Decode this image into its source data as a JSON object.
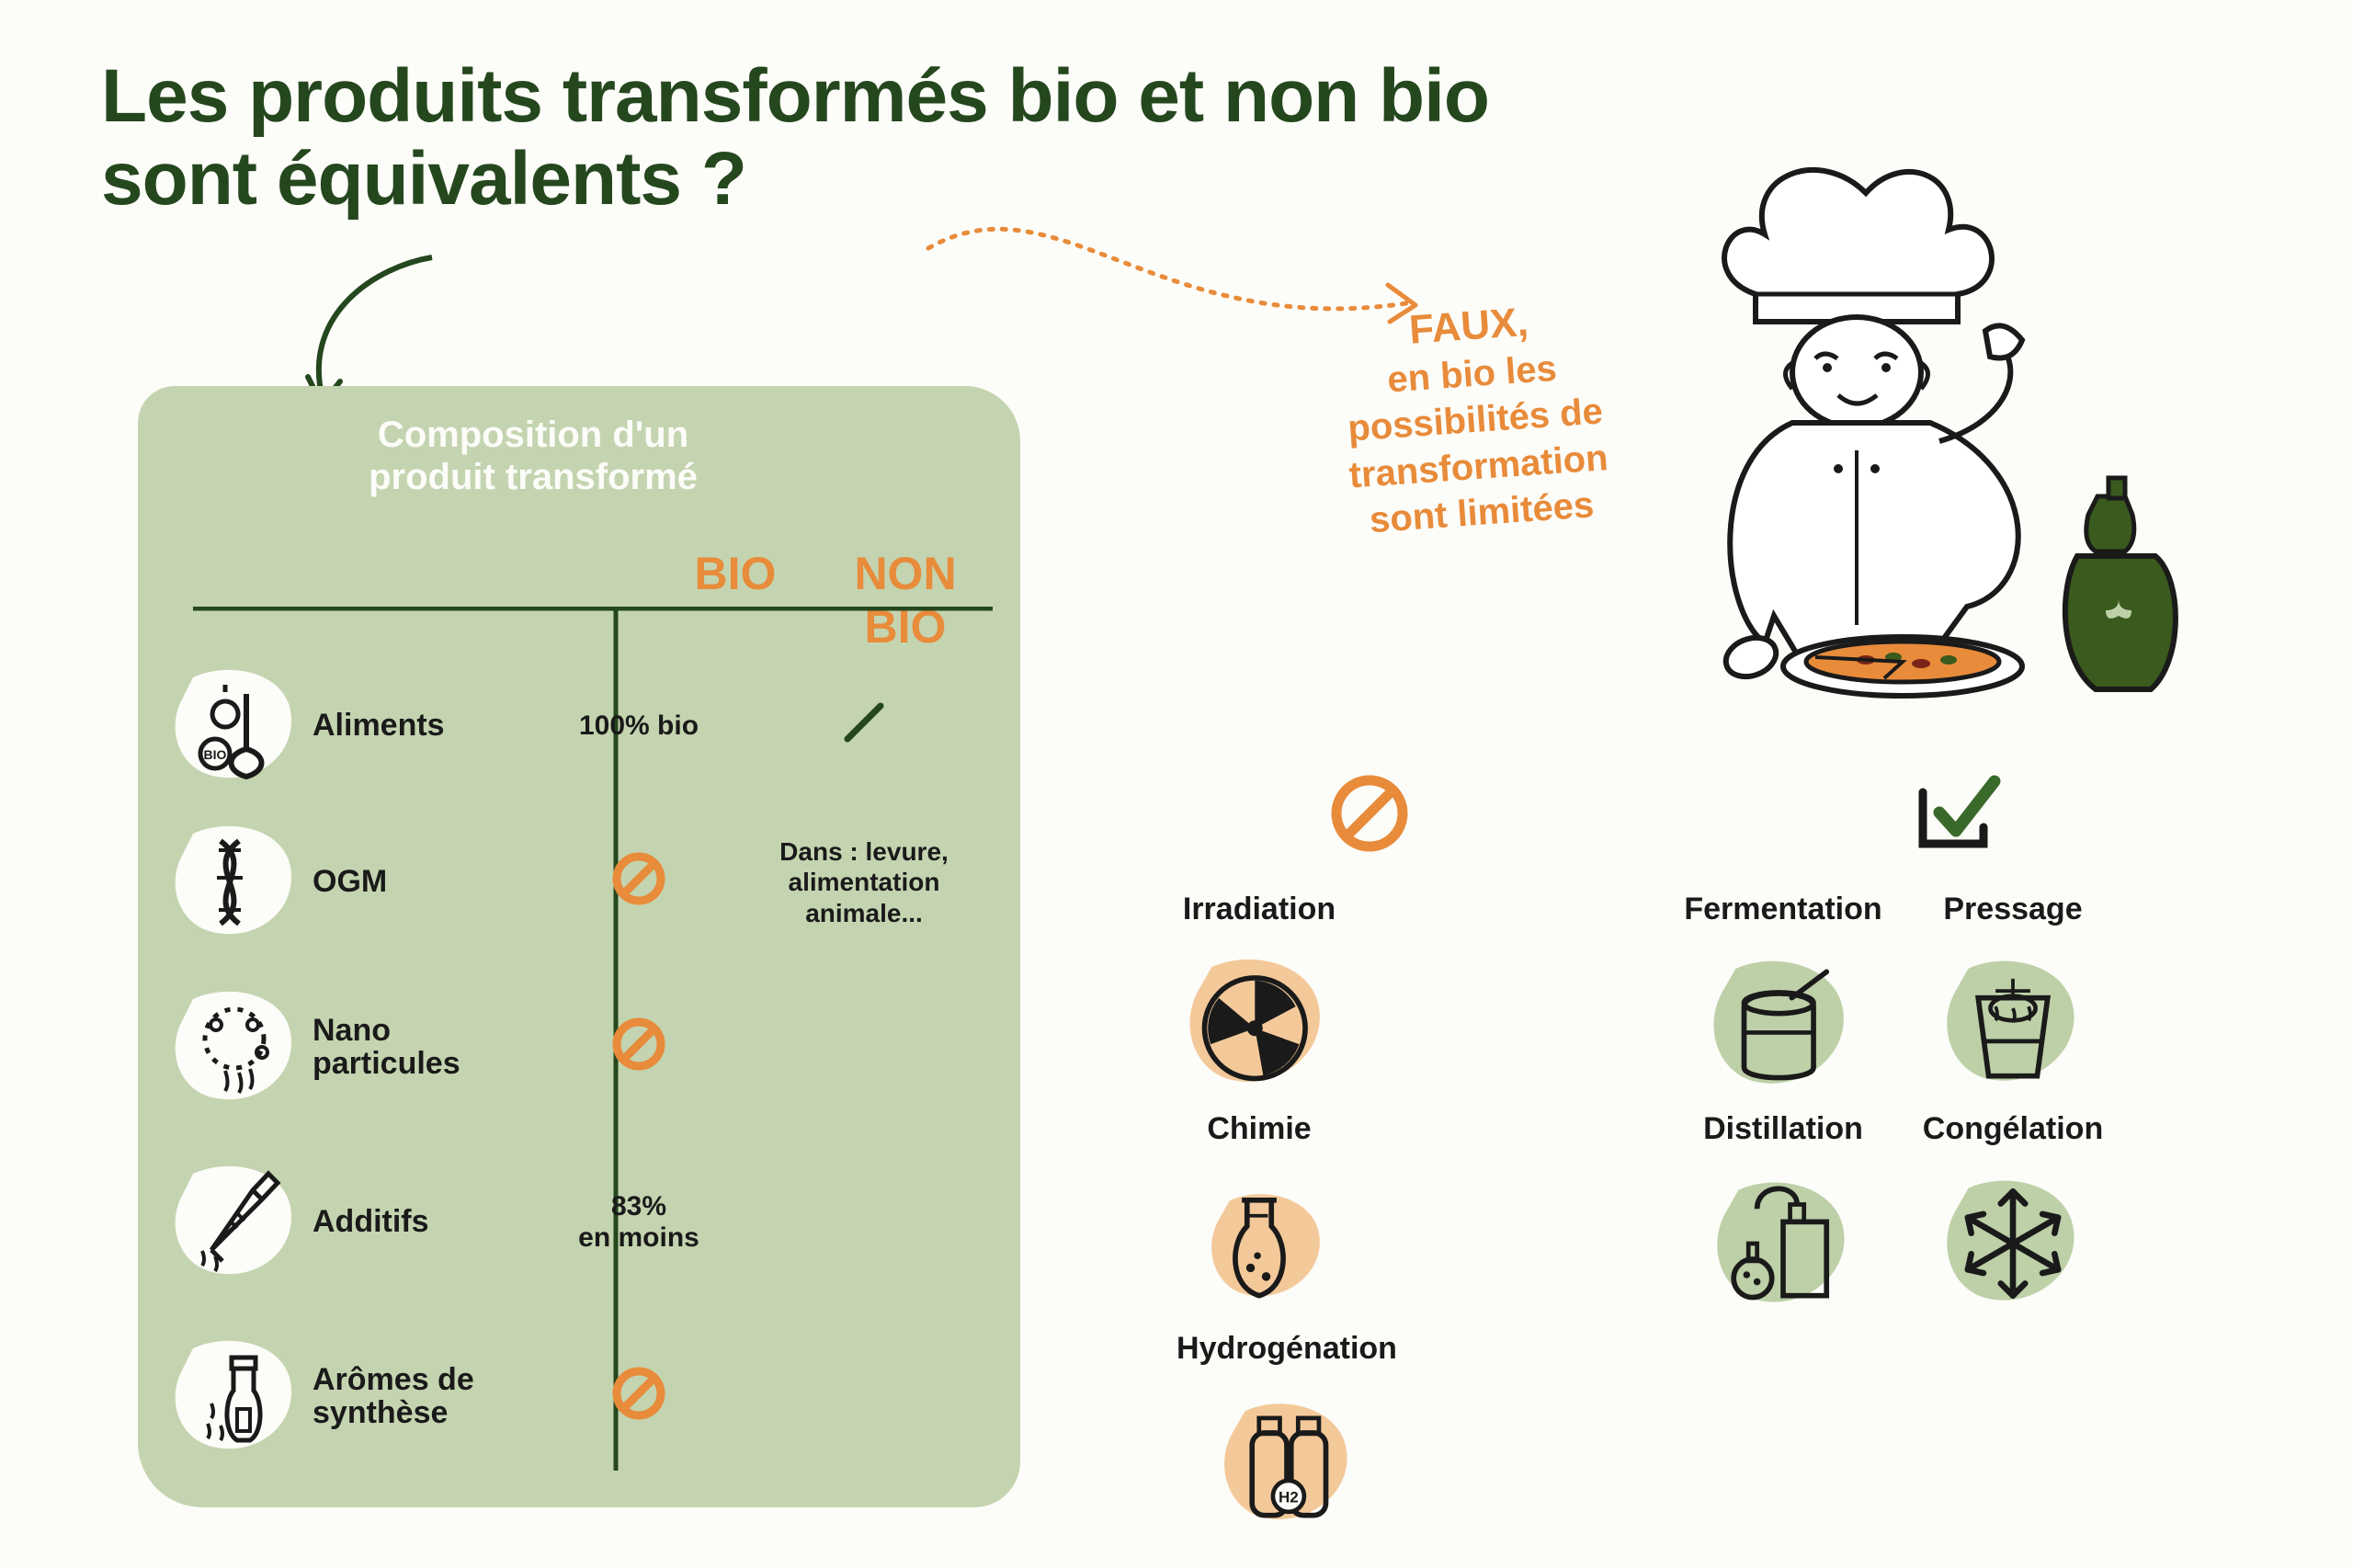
{
  "colors": {
    "dark_green": "#25471e",
    "orange": "#e88b3a",
    "light_green_panel": "#c4d4b0",
    "light_green_blob": "#bdd0a8",
    "white_blob": "#fcfcf8",
    "black": "#1a1a1a"
  },
  "title": "Les produits transformés bio et non bio sont équivalents ?",
  "faux": {
    "line1": "FAUX,",
    "line2": "en bio les possibilités de transformation sont limitées"
  },
  "panel": {
    "title": "Composition d'un produit transformé",
    "col_bio": "BIO",
    "col_nonbio": "NON BIO"
  },
  "rows": [
    {
      "label": "Aliments",
      "bio_text": "100% bio",
      "bio_symbol": null,
      "nonbio_text": null,
      "nonbio_symbol": "slash"
    },
    {
      "label": "OGM",
      "bio_text": null,
      "bio_symbol": "prohibit",
      "nonbio_text": "Dans : levure, alimentation animale...",
      "nonbio_symbol": null
    },
    {
      "label": "Nano particules",
      "bio_text": null,
      "bio_symbol": "prohibit",
      "nonbio_text": null,
      "nonbio_symbol": null
    },
    {
      "label": "Additifs",
      "bio_text": "83% en moins",
      "bio_symbol": null,
      "nonbio_text": null,
      "nonbio_symbol": null
    },
    {
      "label": "Arômes de synthèse",
      "bio_text": null,
      "bio_symbol": "prohibit",
      "nonbio_text": null,
      "nonbio_symbol": null
    }
  ],
  "row_y_positions": [
    290,
    460,
    640,
    830,
    1020
  ],
  "processes_forbidden": {
    "header_symbol": "prohibit",
    "items": [
      "Irradiation",
      "Chimie",
      "Hydrogénation"
    ]
  },
  "processes_allowed": {
    "header_symbol": "check",
    "items": [
      "Fermentation",
      "Pressage",
      "Distillation",
      "Congélation"
    ]
  }
}
